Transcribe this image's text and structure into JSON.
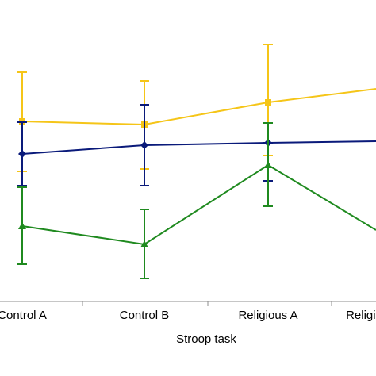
{
  "chart_data": {
    "type": "line",
    "categories": [
      "Control A",
      "Control B",
      "Religious A",
      "Religious B"
    ],
    "xlabel": "Stroop task",
    "ylabel": "",
    "series": [
      {
        "color": "#f5c518",
        "marker": "square",
        "values": [
          153,
          157,
          129,
          112
        ],
        "error_upper": [
          91,
          102,
          56,
          null
        ],
        "error_lower": [
          216,
          213,
          196,
          null
        ]
      },
      {
        "color": "#0a1a7a",
        "marker": "diamond",
        "values": [
          194,
          183,
          180,
          178
        ],
        "error_upper": [
          154,
          132,
          180,
          null
        ],
        "error_lower": [
          234,
          234,
          228,
          null
        ]
      },
      {
        "color": "#1f8a1f",
        "marker": "triangle",
        "values": [
          285,
          308,
          208,
          290
        ],
        "error_upper": [
          236,
          264,
          155,
          null
        ],
        "error_lower": [
          333,
          351,
          260,
          null
        ]
      }
    ]
  }
}
